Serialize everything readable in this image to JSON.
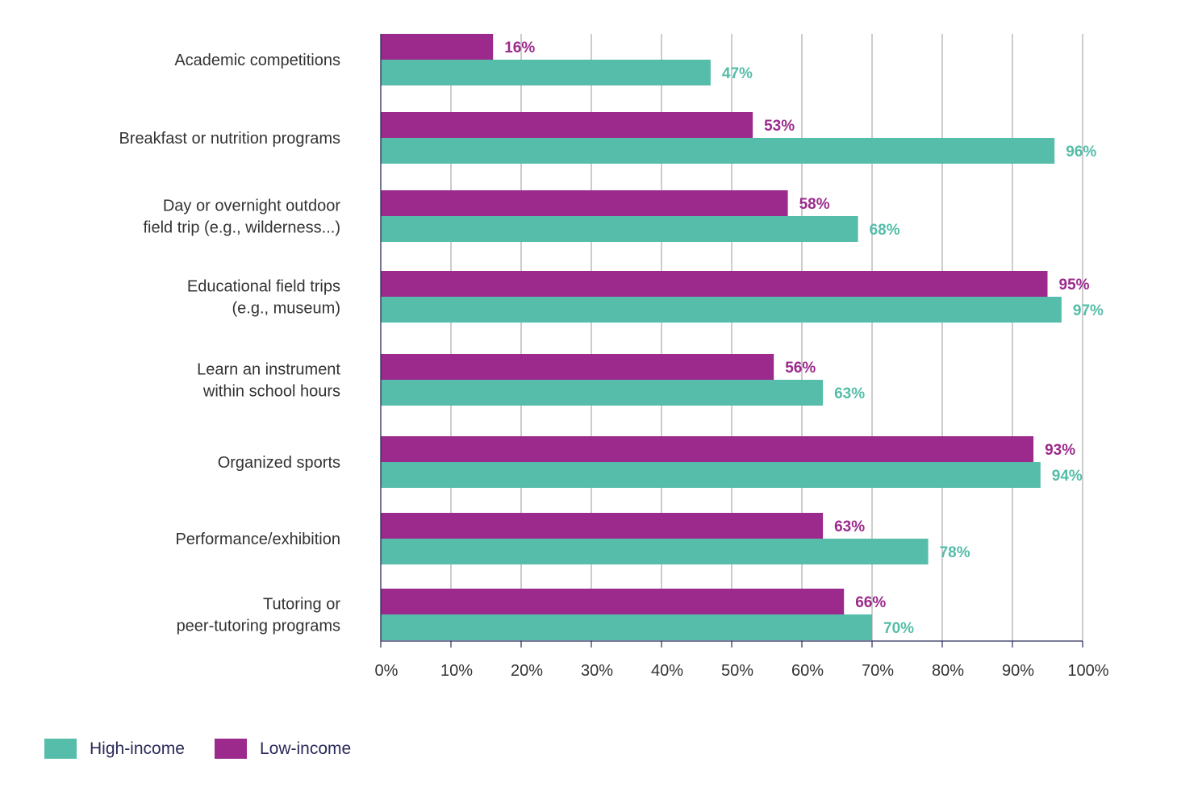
{
  "chart_data": {
    "type": "bar",
    "orientation": "horizontal",
    "categories": [
      [
        "Academic competitions"
      ],
      [
        "Breakfast or nutrition programs"
      ],
      [
        "Day or overnight outdoor",
        "field trip (e.g., wilderness...)"
      ],
      [
        "Educational field trips",
        "(e.g., museum)"
      ],
      [
        "Learn an instrument",
        "within school hours"
      ],
      [
        "Organized sports"
      ],
      [
        "Performance/exhibition"
      ],
      [
        "Tutoring or",
        "peer-tutoring programs"
      ]
    ],
    "series": [
      {
        "name": "Low-income",
        "color": "#9c2a8c",
        "values": [
          16,
          53,
          58,
          95,
          56,
          93,
          63,
          66
        ],
        "labels": [
          "16%",
          "53%",
          "58%",
          "95%",
          "56%",
          "93%",
          "63%",
          "66%"
        ]
      },
      {
        "name": "High-income",
        "color": "#55bda9",
        "values": [
          47,
          96,
          68,
          97,
          63,
          94,
          78,
          70
        ],
        "labels": [
          "47%",
          "96%",
          "68%",
          "97%",
          "63%",
          "94%",
          "78%",
          "70%"
        ]
      }
    ],
    "xlim": [
      0,
      100
    ],
    "xticks": [
      "0%",
      "10%",
      "20%",
      "30%",
      "40%",
      "50%",
      "60%",
      "70%",
      "80%",
      "90%",
      "100%"
    ],
    "grid": true,
    "legend": {
      "placement": "bottom-left",
      "items": [
        {
          "name": "High-income",
          "color": "#55bda9"
        },
        {
          "name": "Low-income",
          "color": "#9c2a8c"
        }
      ]
    },
    "title": "",
    "xlabel": "",
    "ylabel": ""
  }
}
